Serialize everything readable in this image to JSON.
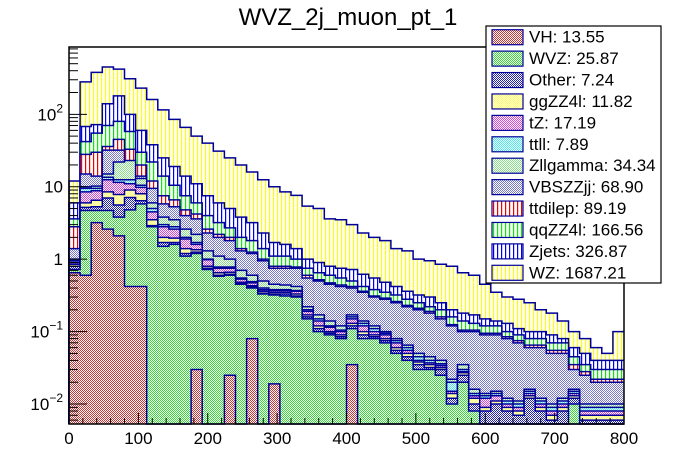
{
  "chart_data": {
    "type": "bar",
    "stacked": true,
    "histogram": true,
    "title": "WVZ_2j_muon_pt_1",
    "xlabel": "",
    "ylabel": "",
    "xlim": [
      0,
      800
    ],
    "ylim": [
      0.0053,
      850
    ],
    "yscale": "log",
    "bin_width": 16,
    "x_ticks": [
      0,
      100,
      200,
      300,
      400,
      500,
      600,
      700,
      800
    ],
    "x_tick_labels": [
      "0",
      "100",
      "200",
      "300",
      "400",
      "500",
      "600",
      "700",
      "800"
    ],
    "y_ticks": [
      0.01,
      0.1,
      1,
      10,
      100
    ],
    "y_tick_labels": [
      {
        "base": "10",
        "exp": "−2"
      },
      {
        "base": "10",
        "exp": "−1"
      },
      {
        "base": "1",
        "exp": ""
      },
      {
        "base": "10",
        "exp": ""
      },
      {
        "base": "10",
        "exp": "2"
      }
    ],
    "legend_position": "top-right",
    "legend": [
      {
        "name": "VH",
        "total": "13.55",
        "label": "VH: 13.55",
        "color": "#cc3333",
        "pattern": "checker"
      },
      {
        "name": "WVZ",
        "total": "25.87",
        "label": "WVZ: 25.87",
        "color": "#33dd33",
        "pattern": "checker"
      },
      {
        "name": "Other",
        "total": "7.24",
        "label": "Other: 7.24",
        "color": "#2222bb",
        "pattern": "checker"
      },
      {
        "name": "ggZZ4l",
        "total": "11.82",
        "label": "ggZZ4l: 11.82",
        "color": "#ffff44",
        "pattern": "checker"
      },
      {
        "name": "tZ",
        "total": "17.19",
        "label": "tZ: 17.19",
        "color": "#dd44dd",
        "pattern": "checker"
      },
      {
        "name": "ttll",
        "total": "7.89",
        "label": "ttll: 7.89",
        "color": "#44eeee",
        "pattern": "checker"
      },
      {
        "name": "Zllgamma",
        "total": "34.34",
        "label": "Zllgamma: 34.34",
        "color": "#88dd88",
        "pattern": "checker"
      },
      {
        "name": "VBSZZjj",
        "total": "68.90",
        "label": "VBSZZjj: 68.90",
        "color": "#7777cc",
        "pattern": "checker"
      },
      {
        "name": "ttdilep",
        "total": "89.19",
        "label": "ttdilep: 89.19",
        "color": "#ee0000",
        "pattern": "vlines"
      },
      {
        "name": "qqZZ4l",
        "total": "166.56",
        "label": "qqZZ4l: 166.56",
        "color": "#00ee00",
        "pattern": "vlines"
      },
      {
        "name": "Zjets",
        "total": "326.87",
        "label": "Zjets: 326.87",
        "color": "#0000ee",
        "pattern": "vlines"
      },
      {
        "name": "WZ",
        "total": "1687.21",
        "label": "WZ: 1687.21",
        "color": "#ffff00",
        "pattern": "vlines"
      }
    ],
    "bins": [
      0,
      16,
      32,
      48,
      64,
      80,
      96,
      112,
      128,
      144,
      160,
      176,
      192,
      208,
      224,
      240,
      256,
      272,
      288,
      304,
      320,
      336,
      352,
      368,
      384,
      400,
      416,
      432,
      448,
      464,
      480,
      496,
      512,
      528,
      544,
      560,
      576,
      592,
      608,
      624,
      640,
      656,
      672,
      688,
      704,
      720,
      736,
      752,
      768,
      784
    ],
    "stack_tops": [
      {
        "name": "VH",
        "values": [
          0.65,
          0.6,
          3.2,
          2.6,
          2.1,
          0.42,
          0.42,
          0,
          0,
          0,
          0,
          0.03,
          0,
          0,
          0.025,
          0,
          0.08,
          0,
          0.019,
          0,
          0,
          0,
          0,
          0,
          0,
          0.035,
          0,
          0,
          0,
          0,
          0,
          0,
          0,
          0,
          0,
          0,
          0,
          0,
          0,
          0,
          0,
          0,
          0,
          0,
          0,
          0,
          0,
          0,
          0,
          0
        ]
      },
      {
        "name": "WVZ",
        "values": [
          0.72,
          4.7,
          4.7,
          4.7,
          3.8,
          4.8,
          5.8,
          2.8,
          1.5,
          1.6,
          1.1,
          1.2,
          0.72,
          0.58,
          0.6,
          0.45,
          0.4,
          0.33,
          0.32,
          0.31,
          0.3,
          0.15,
          0.1,
          0.09,
          0.08,
          0.11,
          0.08,
          0.08,
          0.07,
          0.05,
          0.04,
          0.03,
          0.03,
          0.025,
          0.01,
          0.02,
          0.008,
          0.005,
          0.005,
          0.005,
          0.005,
          0.005,
          0.005,
          0.005,
          0.005,
          0.01,
          0.005,
          0.005,
          0.005,
          0.005
        ]
      },
      {
        "name": "Other",
        "values": [
          0.8,
          5.2,
          5.3,
          7.0,
          5.6,
          7.1,
          6.4,
          2.9,
          1.7,
          1.7,
          1.2,
          1.25,
          0.75,
          0.6,
          0.62,
          0.46,
          0.41,
          0.34,
          0.33,
          0.33,
          0.31,
          0.16,
          0.11,
          0.095,
          0.085,
          0.12,
          0.09,
          0.085,
          0.075,
          0.055,
          0.045,
          0.035,
          0.032,
          0.03,
          0.012,
          0.025,
          0.01,
          0.008,
          0.01,
          0.008,
          0.007,
          0.012,
          0.008,
          0.006,
          0.008,
          0.012,
          0.006,
          0.006,
          0.006,
          0.006
        ]
      },
      {
        "name": "ggZZ4l",
        "values": [
          0.85,
          6.0,
          6.5,
          8.5,
          7.8,
          9.0,
          8.0,
          3.5,
          2.0,
          1.95,
          1.4,
          1.35,
          0.8,
          0.65,
          0.66,
          0.48,
          0.43,
          0.36,
          0.35,
          0.35,
          0.33,
          0.17,
          0.12,
          0.1,
          0.09,
          0.13,
          0.1,
          0.09,
          0.08,
          0.06,
          0.05,
          0.038,
          0.035,
          0.032,
          0.014,
          0.027,
          0.012,
          0.009,
          0.011,
          0.009,
          0.008,
          0.013,
          0.009,
          0.007,
          0.009,
          0.013,
          0.007,
          0.007,
          0.007,
          0.007
        ]
      },
      {
        "name": "tZ",
        "values": [
          0.9,
          8.5,
          8.8,
          12.5,
          11.5,
          11.0,
          9.8,
          4.5,
          2.8,
          2.6,
          1.9,
          1.6,
          0.98,
          0.75,
          0.75,
          0.53,
          0.47,
          0.38,
          0.37,
          0.37,
          0.36,
          0.19,
          0.14,
          0.115,
          0.1,
          0.15,
          0.12,
          0.1,
          0.09,
          0.07,
          0.055,
          0.04,
          0.037,
          0.034,
          0.015,
          0.028,
          0.013,
          0.012,
          0.013,
          0.01,
          0.009,
          0.014,
          0.01,
          0.008,
          0.01,
          0.014,
          0.008,
          0.008,
          0.008,
          0.008
        ]
      },
      {
        "name": "ttll",
        "values": [
          0.95,
          9.5,
          9.5,
          13.5,
          12.5,
          12.5,
          10.5,
          5.0,
          3.0,
          2.8,
          2.0,
          1.7,
          1.0,
          0.78,
          0.78,
          0.55,
          0.49,
          0.4,
          0.38,
          0.38,
          0.37,
          0.2,
          0.15,
          0.12,
          0.105,
          0.16,
          0.13,
          0.11,
          0.095,
          0.075,
          0.06,
          0.045,
          0.04,
          0.036,
          0.02,
          0.03,
          0.014,
          0.013,
          0.014,
          0.011,
          0.01,
          0.015,
          0.011,
          0.009,
          0.011,
          0.015,
          0.009,
          0.009,
          0.009,
          0.009
        ]
      },
      {
        "name": "Zllgamma",
        "values": [
          1.0,
          10,
          10.2,
          15,
          22,
          23,
          13,
          6.0,
          3.8,
          3.5,
          2.6,
          2.2,
          1.3,
          1.1,
          1.0,
          0.7,
          0.6,
          0.5,
          0.45,
          0.44,
          0.42,
          0.22,
          0.17,
          0.14,
          0.12,
          0.17,
          0.14,
          0.12,
          0.1,
          0.08,
          0.065,
          0.05,
          0.045,
          0.04,
          0.022,
          0.035,
          0.016,
          0.014,
          0.015,
          0.012,
          0.011,
          0.016,
          0.012,
          0.01,
          0.012,
          0.016,
          0.01,
          0.01,
          0.01,
          0.01
        ]
      },
      {
        "name": "VBSZZjj",
        "values": [
          1.4,
          15,
          14,
          32,
          32,
          22,
          14,
          9.5,
          5.8,
          5.3,
          4.0,
          3.6,
          2.3,
          2.0,
          1.8,
          1.3,
          1.2,
          0.95,
          0.75,
          0.75,
          0.75,
          0.55,
          0.5,
          0.45,
          0.42,
          0.4,
          0.35,
          0.3,
          0.28,
          0.25,
          0.22,
          0.2,
          0.18,
          0.15,
          0.12,
          0.1,
          0.1,
          0.09,
          0.09,
          0.08,
          0.07,
          0.06,
          0.06,
          0.05,
          0.05,
          0.03,
          0.025,
          0.02,
          0.02,
          0.02
        ]
      },
      {
        "name": "ttdilep",
        "values": [
          2.8,
          28,
          30,
          36,
          45,
          33,
          20,
          12,
          7.5,
          6.6,
          4.8,
          4.2,
          2.6,
          2.2,
          2.0,
          1.4,
          1.25,
          1.0,
          0.8,
          0.8,
          0.78,
          0.6,
          0.52,
          0.47,
          0.44,
          0.42,
          0.36,
          0.31,
          0.29,
          0.26,
          0.23,
          0.21,
          0.19,
          0.16,
          0.125,
          0.105,
          0.105,
          0.095,
          0.095,
          0.085,
          0.075,
          0.065,
          0.065,
          0.055,
          0.055,
          0.035,
          0.028,
          0.022,
          0.022,
          0.022
        ]
      },
      {
        "name": "qqZZ4l",
        "values": [
          3.6,
          42,
          55,
          70,
          80,
          58,
          30,
          22,
          14,
          10.5,
          7.5,
          6.0,
          4.0,
          3.2,
          2.7,
          2.0,
          1.8,
          1.4,
          1.1,
          1.1,
          1.0,
          0.75,
          0.65,
          0.6,
          0.55,
          0.5,
          0.42,
          0.38,
          0.35,
          0.32,
          0.28,
          0.25,
          0.22,
          0.2,
          0.16,
          0.14,
          0.13,
          0.12,
          0.12,
          0.1,
          0.09,
          0.08,
          0.08,
          0.07,
          0.07,
          0.045,
          0.035,
          0.03,
          0.03,
          0.03
        ]
      },
      {
        "name": "Zjets",
        "values": [
          6.0,
          68,
          72,
          140,
          180,
          100,
          60,
          38,
          25,
          19,
          14,
          11,
          7.5,
          6.0,
          5.0,
          3.8,
          3.2,
          2.3,
          1.7,
          1.6,
          1.4,
          1.0,
          0.9,
          0.8,
          0.75,
          0.72,
          0.62,
          0.55,
          0.48,
          0.42,
          0.36,
          0.32,
          0.3,
          0.25,
          0.2,
          0.18,
          0.17,
          0.15,
          0.14,
          0.13,
          0.11,
          0.1,
          0.1,
          0.09,
          0.08,
          0.06,
          0.05,
          0.04,
          0.04,
          0.04
        ]
      },
      {
        "name": "WZ",
        "values": [
          12,
          280,
          380,
          450,
          420,
          310,
          230,
          160,
          115,
          85,
          66,
          50,
          40,
          31,
          25,
          20,
          16,
          12.5,
          10,
          8.5,
          7.6,
          5.4,
          5.0,
          3.6,
          3.5,
          3.0,
          2.3,
          2.0,
          1.8,
          1.4,
          1.3,
          1.0,
          0.95,
          0.85,
          0.8,
          0.65,
          0.6,
          0.45,
          0.35,
          0.3,
          0.28,
          0.25,
          0.2,
          0.18,
          0.14,
          0.1,
          0.08,
          0.06,
          0.05,
          0.1
        ]
      }
    ]
  }
}
